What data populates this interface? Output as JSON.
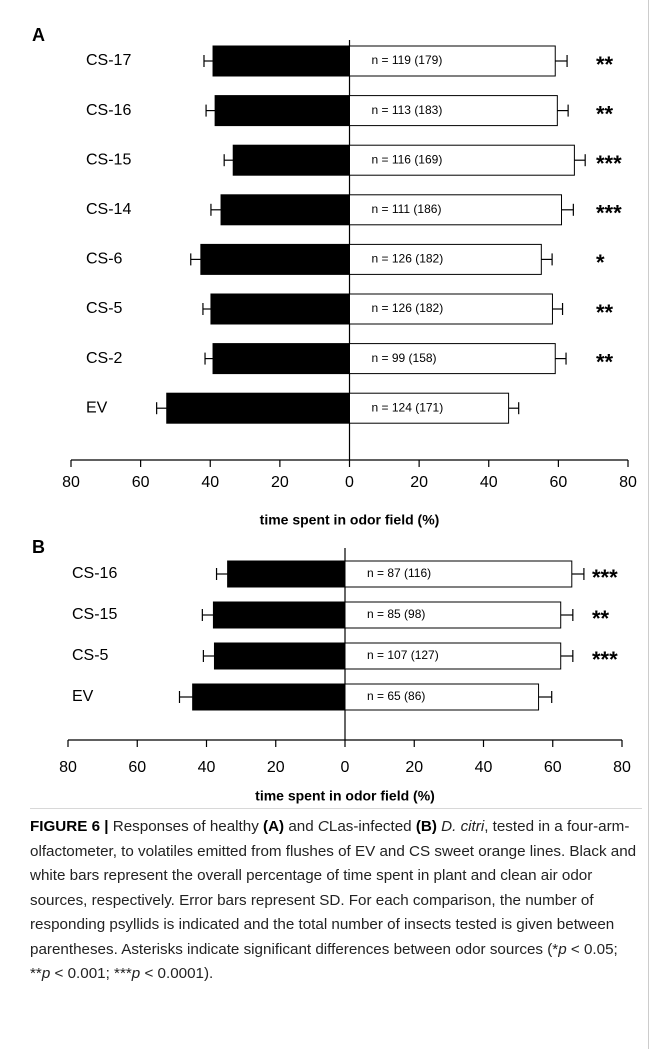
{
  "chart_data": [
    {
      "type": "bar",
      "orientation": "horizontal",
      "panel": "A",
      "categories": [
        "CS-17",
        "CS-16",
        "CS-15",
        "CS-14",
        "CS-6",
        "CS-5",
        "CS-2",
        "EV"
      ],
      "series": [
        {
          "color": "#000000",
          "values": [
            -39.2,
            -38.6,
            -33.4,
            -36.9,
            -42.7,
            -39.8,
            -39.2,
            -52.5
          ],
          "errors": [
            2.6,
            2.6,
            2.6,
            2.9,
            2.9,
            2.3,
            2.3,
            2.9
          ]
        },
        {
          "color": "#ffffff",
          "values": [
            59.1,
            59.7,
            64.6,
            60.9,
            55.1,
            58.3,
            59.1,
            45.7
          ],
          "errors": [
            3.4,
            3.1,
            3.1,
            3.4,
            3.1,
            2.9,
            3.1,
            2.9
          ]
        }
      ],
      "bar_labels": [
        "n = 119 (179)",
        "n = 113 (183)",
        "n = 116 (169)",
        "n = 111 (186)",
        "n = 126 (182)",
        "n = 126 (182)",
        "n = 99 (158)",
        "n = 124 (171)"
      ],
      "significance": [
        "**",
        "**",
        "***",
        "***",
        "*",
        "**",
        "**",
        null
      ],
      "xlabel": "time spent in odor field (%)",
      "xlim": [
        -80,
        80
      ],
      "xticks": [
        {
          "value": -80,
          "label": "80"
        },
        {
          "value": -60,
          "label": "60"
        },
        {
          "value": -40,
          "label": "40"
        },
        {
          "value": -20,
          "label": "20"
        },
        0,
        20,
        40,
        60,
        80
      ]
    },
    {
      "type": "bar",
      "orientation": "horizontal",
      "panel": "B",
      "categories": [
        "CS-16",
        "CS-15",
        "CS-5",
        "EV"
      ],
      "series": [
        {
          "color": "#000000",
          "values": [
            -33.9,
            -38.0,
            -37.7,
            -44.0
          ],
          "errors": [
            3.2,
            3.2,
            3.2,
            3.8
          ]
        },
        {
          "color": "#ffffff",
          "values": [
            65.5,
            62.3,
            62.3,
            55.9
          ],
          "errors": [
            3.5,
            3.5,
            3.5,
            3.8
          ]
        }
      ],
      "bar_labels": [
        "n = 87 (116)",
        "n = 85 (98)",
        "n = 107 (127)",
        "n = 65 (86)"
      ],
      "significance": [
        "***",
        "**",
        "***",
        null
      ],
      "xlabel": "time spent in odor field (%)",
      "xlim": [
        -80,
        80
      ],
      "xticks": [
        {
          "value": -80,
          "label": "80"
        },
        {
          "value": -60,
          "label": "60"
        },
        {
          "value": -40,
          "label": "40"
        },
        {
          "value": -20,
          "label": "20"
        },
        0,
        20,
        40,
        60,
        80
      ]
    }
  ],
  "caption": [
    {
      "text": "FIGURE 6 |",
      "style": "bold"
    },
    {
      "text": " Responses of healthy ",
      "style": "normal"
    },
    {
      "text": "(A)",
      "style": "bold"
    },
    {
      "text": " and ",
      "style": "normal"
    },
    {
      "text": "C",
      "style": "italic"
    },
    {
      "text": "Las-infected ",
      "style": "normal"
    },
    {
      "text": "(B)",
      "style": "bold"
    },
    {
      "text": " ",
      "style": "normal"
    },
    {
      "text": "D. citri",
      "style": "italic"
    },
    {
      "text": ", tested in a four-arm-olfactometer, to volatiles emitted from flushes of EV and CS sweet orange lines. Black and white bars represent the overall percentage of time spent in plant and clean air odor sources, respectively. Error bars represent SD. For each comparison, the number of responding psyllids is indicated and the total number of insects tested is given between parentheses. Asterisks indicate significant differences between odor sources (*",
      "style": "normal"
    },
    {
      "text": "p",
      "style": "italic"
    },
    {
      "text": " < 0.05; **",
      "style": "normal"
    },
    {
      "text": "p",
      "style": "italic"
    },
    {
      "text": " < 0.001; ***",
      "style": "normal"
    },
    {
      "text": "p",
      "style": "italic"
    },
    {
      "text": " < 0.0001).",
      "style": "normal"
    }
  ]
}
